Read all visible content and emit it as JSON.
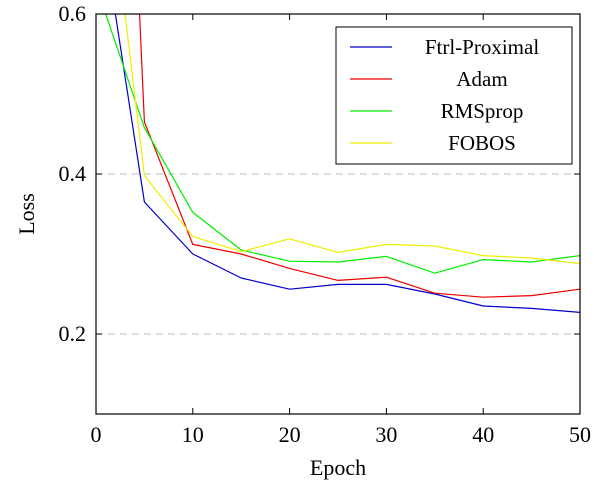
{
  "chart_data": {
    "type": "line",
    "title": "",
    "xlabel": "Epoch",
    "ylabel": "Loss",
    "xlim": [
      0,
      50
    ],
    "ylim": [
      0.1,
      0.6
    ],
    "xticks": [
      0,
      10,
      20,
      30,
      40,
      50
    ],
    "xtick_labels": [
      "0",
      "10",
      "20",
      "30",
      "40",
      "50"
    ],
    "yticks": [
      0.2,
      0.4,
      0.6
    ],
    "ytick_labels": [
      "0.2",
      "0.4",
      "0.6"
    ],
    "grid": {
      "y": true,
      "x": false,
      "style": "dashed",
      "values": [
        0.2,
        0.4
      ]
    },
    "legend_position": "top-right",
    "series": [
      {
        "name": "Ftrl-Proximal",
        "color": "#0000cc",
        "x": [
          2,
          5,
          10,
          15,
          20,
          25,
          30,
          35,
          40,
          45,
          50
        ],
        "y": [
          0.6,
          0.365,
          0.3,
          0.27,
          0.256,
          0.262,
          0.262,
          0.25,
          0.235,
          0.232,
          0.227
        ]
      },
      {
        "name": "Adam",
        "color": "#ee0000",
        "x": [
          4.5,
          5,
          10,
          15,
          20,
          25,
          30,
          35,
          40,
          45,
          50
        ],
        "y": [
          0.6,
          0.465,
          0.312,
          0.3,
          0.282,
          0.267,
          0.271,
          0.251,
          0.246,
          0.248,
          0.256
        ]
      },
      {
        "name": "RMSprop",
        "color": "#00ee00",
        "x": [
          1,
          5,
          10,
          15,
          20,
          25,
          30,
          35,
          40,
          45,
          50
        ],
        "y": [
          0.6,
          0.458,
          0.352,
          0.305,
          0.291,
          0.29,
          0.297,
          0.276,
          0.293,
          0.29,
          0.298
        ]
      },
      {
        "name": "FOBOS",
        "color": "#eeee00",
        "x": [
          3,
          5,
          10,
          15,
          20,
          25,
          30,
          35,
          40,
          45,
          50
        ],
        "y": [
          0.6,
          0.398,
          0.322,
          0.303,
          0.319,
          0.302,
          0.312,
          0.31,
          0.298,
          0.295,
          0.288
        ]
      }
    ]
  }
}
